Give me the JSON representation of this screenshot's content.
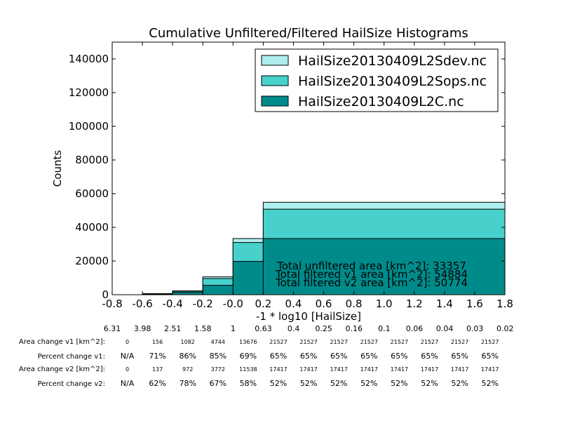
{
  "chart_data": {
    "type": "histogram",
    "title": "Cumulative Unfiltered/Filtered HailSize Histograms",
    "xlabel": "-1 * log10 [HailSize]",
    "ylabel": "Counts",
    "xlim": [
      -0.8,
      1.8
    ],
    "ylim": [
      0,
      150000
    ],
    "x_ticks": [
      "-0.8",
      "-0.6",
      "-0.4",
      "-0.2",
      "-0.0",
      "0.2",
      "0.4",
      "0.6",
      "0.8",
      "1.0",
      "1.2",
      "1.4",
      "1.6",
      "1.8"
    ],
    "y_ticks": [
      "0",
      "20000",
      "40000",
      "60000",
      "80000",
      "100000",
      "120000",
      "140000"
    ],
    "bin_edges": [
      -0.8,
      -0.6,
      -0.4,
      -0.2,
      0.0,
      0.2,
      1.8
    ],
    "legend_position": "top-right",
    "series": [
      {
        "name": "HailSize20130409L2Sdev.nc",
        "color": "#aeeeee",
        "values": [
          0,
          650,
          2300,
          10600,
          33357,
          54884
        ]
      },
      {
        "name": "HailSize20130409L2Sops.nc",
        "color": "#48d1cc",
        "values": [
          0,
          600,
          2100,
          9600,
          31000,
          50774
        ]
      },
      {
        "name": "HailSize20130409L2C.nc",
        "color": "#008b8b",
        "values": [
          0,
          400,
          1400,
          5600,
          19800,
          33357
        ]
      }
    ],
    "annotations": [
      "Total unfiltered area [km^2]: 33357",
      "Total filtered v1 area [km^2]: 54884",
      "Total filtered v2 area [km^2]: 50774"
    ]
  },
  "size_row": [
    "6.31",
    "3.98",
    "2.51",
    "1.58",
    "1",
    "0.63",
    "0.4",
    "0.25",
    "0.16",
    "0.1",
    "0.06",
    "0.04",
    "0.03",
    "0.02"
  ],
  "table_rows": [
    {
      "label": "Area change v1 [km^2]:",
      "values": [
        "0",
        "156",
        "1082",
        "4744",
        "13676",
        "21527",
        "21527",
        "21527",
        "21527",
        "21527",
        "21527",
        "21527",
        "21527"
      ],
      "small": true
    },
    {
      "label": "Percent change v1:",
      "values": [
        "N/A",
        "71%",
        "86%",
        "85%",
        "69%",
        "65%",
        "65%",
        "65%",
        "65%",
        "65%",
        "65%",
        "65%",
        "65%"
      ],
      "small": false
    },
    {
      "label": "Area change v2 [km^2]:",
      "values": [
        "0",
        "137",
        "972",
        "3772",
        "11538",
        "17417",
        "17417",
        "17417",
        "17417",
        "17417",
        "17417",
        "17417",
        "17417"
      ],
      "small": true
    },
    {
      "label": "Percent change v2:",
      "values": [
        "N/A",
        "62%",
        "78%",
        "67%",
        "58%",
        "52%",
        "52%",
        "52%",
        "52%",
        "52%",
        "52%",
        "52%",
        "52%"
      ],
      "small": false
    }
  ]
}
